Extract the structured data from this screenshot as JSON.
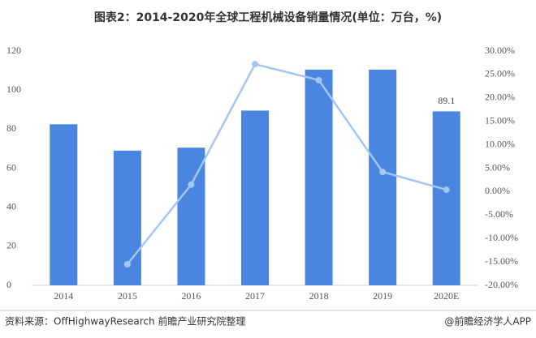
{
  "chart_data": {
    "type": "bar",
    "title": "图表2：2014-2020年全球工程机械设备销量情况(单位：万台，%)",
    "source": "资料来源：OffHighwayResearch 前瞻产业研究院整理",
    "brand": "@前瞻经济学人APP",
    "categories": [
      "2014",
      "2015",
      "2016",
      "2017",
      "2018",
      "2019",
      "2020E"
    ],
    "series": [
      {
        "type": "bar",
        "color": "#4a86e0",
        "values": [
          82.5,
          69,
          70.5,
          89.5,
          110.5,
          110.5,
          89.1
        ],
        "value_labels": [
          null,
          null,
          null,
          null,
          null,
          null,
          "89.1"
        ]
      },
      {
        "type": "line",
        "axis": "y2",
        "color": "#a3c6f2",
        "values": [
          null,
          -15.5,
          1.5,
          27.2,
          23.8,
          4.2,
          0.4
        ]
      }
    ],
    "ylim": [
      0,
      120
    ],
    "yticks": [
      0,
      20,
      40,
      60,
      80,
      100,
      120
    ],
    "y2lim": [
      -20,
      30
    ],
    "y2ticks": [
      {
        "value": 30,
        "label": "30.00%"
      },
      {
        "value": 25,
        "label": "25.00%"
      },
      {
        "value": 20,
        "label": "20.00%"
      },
      {
        "value": 15,
        "label": "15.00%"
      },
      {
        "value": 10,
        "label": "10.00%"
      },
      {
        "value": 5,
        "label": "5.00%"
      },
      {
        "value": 0,
        "label": "0.00%"
      },
      {
        "value": -5,
        "label": "-5.00%"
      },
      {
        "value": -10,
        "label": "-10.00%"
      },
      {
        "value": -15,
        "label": "-15.00%"
      },
      {
        "value": -20,
        "label": "-20.00%"
      }
    ]
  }
}
